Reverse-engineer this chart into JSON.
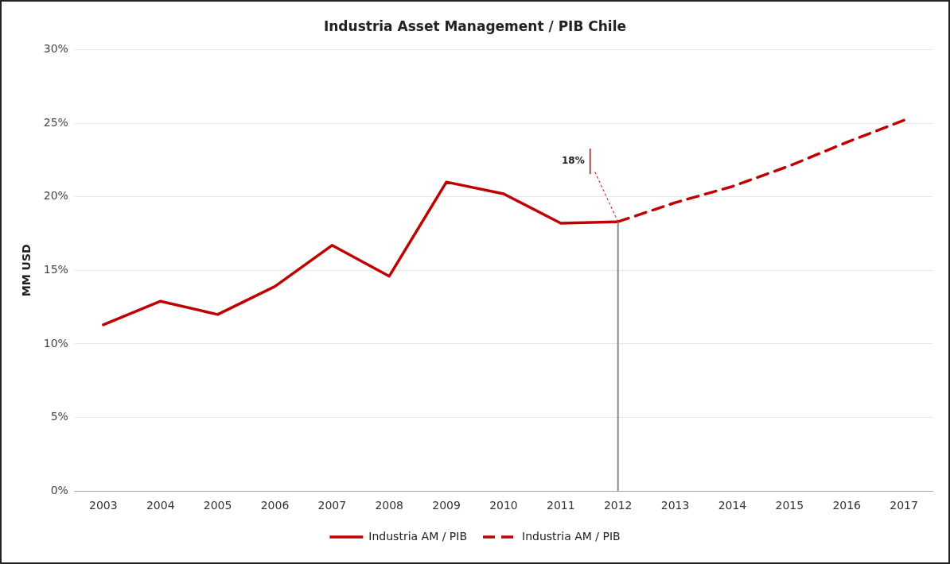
{
  "chart_data": {
    "type": "line",
    "title": "Industria Asset Management / PIB Chile",
    "ylabel": "MM USD",
    "categories": [
      "2003",
      "2004",
      "2005",
      "2006",
      "2007",
      "2008",
      "2009",
      "2010",
      "2011",
      "2012",
      "2013",
      "2014",
      "2015",
      "2016",
      "2017"
    ],
    "series": [
      {
        "name": "Industria AM / PIB",
        "color": "#c00000",
        "line_style": "solid",
        "values": [
          11.3,
          12.9,
          12.0,
          13.9,
          16.7,
          14.6,
          21.0,
          20.2,
          18.2,
          18.3,
          null,
          null,
          null,
          null,
          null
        ]
      },
      {
        "name": "Industria AM / PIB",
        "color": "#c00000",
        "line_style": "dashed",
        "values": [
          null,
          null,
          null,
          null,
          null,
          null,
          null,
          null,
          null,
          18.3,
          19.6,
          20.7,
          22.1,
          23.7,
          25.2
        ]
      }
    ],
    "annotations": [
      {
        "text": "18%",
        "x": "2012",
        "y": 18.3
      }
    ],
    "ref_lines": [
      {
        "axis": "x",
        "value": "2012",
        "color": "#888888"
      }
    ],
    "ylim": [
      0,
      30
    ],
    "yticks": [
      {
        "value": 0,
        "label": "0%"
      },
      {
        "value": 5,
        "label": "5%"
      },
      {
        "value": 10,
        "label": "10%"
      },
      {
        "value": 15,
        "label": "15%"
      },
      {
        "value": 20,
        "label": "20%"
      },
      {
        "value": 25,
        "label": "25%"
      },
      {
        "value": 30,
        "label": "30%"
      }
    ],
    "grid": "y",
    "legend": "bottom",
    "marker": "none"
  }
}
